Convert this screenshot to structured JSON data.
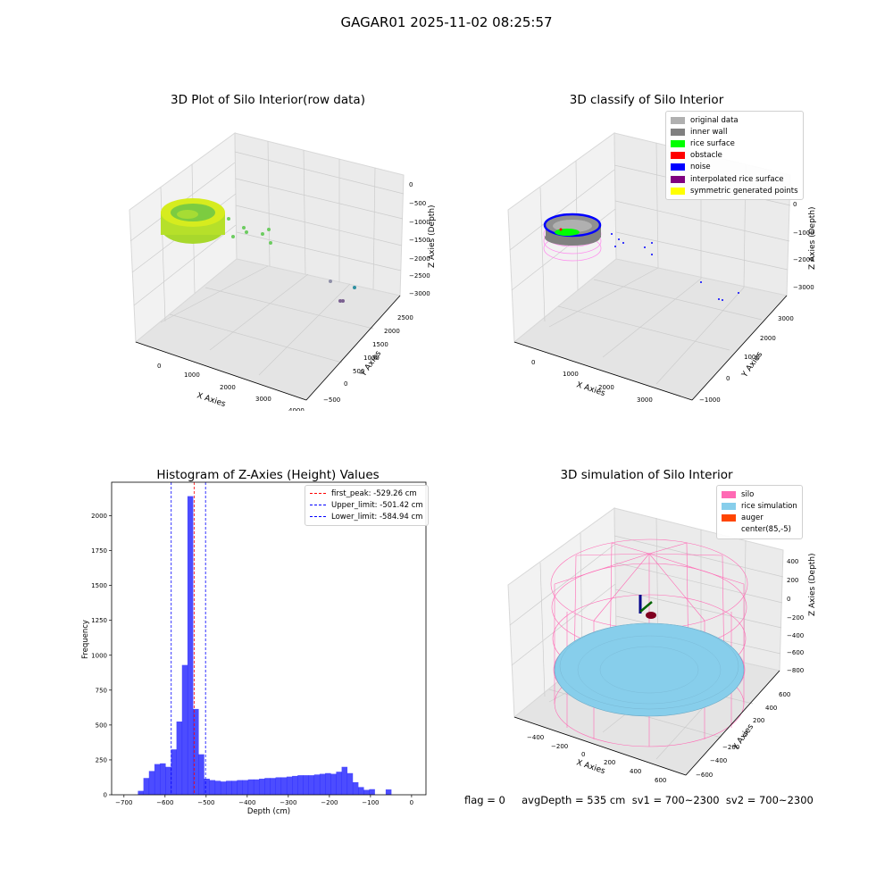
{
  "suptitle": "GAGAR01 2025-11-02 08:25:57",
  "footer": "flag = 0     avgDepth = 535 cm  sv1 = 700~2300  sv2 = 700~2300",
  "chart_data": [
    {
      "type": "scatter",
      "title": "3D Plot of Silo Interior(row data)",
      "xlabel": "X Axies",
      "ylabel": "Y Axies",
      "zlabel": "Z Axies (Depth)",
      "x_ticks": [
        "0",
        "1000",
        "2000",
        "3000",
        "4000"
      ],
      "y_ticks": [
        "−500",
        "0",
        "500",
        "1000",
        "1500",
        "2000",
        "2500"
      ],
      "z_ticks": [
        "0",
        "−500",
        "−1000",
        "−1500",
        "−2000",
        "−2500",
        "−3000"
      ]
    },
    {
      "type": "scatter",
      "title": "3D classify of Silo Interior",
      "xlabel": "X Axies",
      "ylabel": "Y Axies",
      "zlabel": "Z Axies (Depth)",
      "x_ticks": [
        "0",
        "1000",
        "2000",
        "3000"
      ],
      "y_ticks": [
        "−1000",
        "0",
        "1000",
        "2000",
        "3000"
      ],
      "z_ticks": [
        "0",
        "−1000",
        "−2000",
        "−3000"
      ],
      "legend": [
        {
          "label": "original data",
          "color": "#b0b0b0"
        },
        {
          "label": "inner wall",
          "color": "#808080"
        },
        {
          "label": "rice surface",
          "color": "#00ff00"
        },
        {
          "label": "obstacle",
          "color": "#ff0000"
        },
        {
          "label": "noise",
          "color": "#0000ff"
        },
        {
          "label": "interpolated rice surface",
          "color": "#800080"
        },
        {
          "label": "symmetric generated points",
          "color": "#ffff00"
        }
      ]
    },
    {
      "type": "bar",
      "title": "Histogram of Z-Axies (Height) Values",
      "xlabel": "Depth (cm)",
      "ylabel": "Frequency",
      "xlim": [
        -730,
        35
      ],
      "ylim": [
        0,
        2240
      ],
      "x_ticks": [
        -700,
        -600,
        -500,
        -400,
        -300,
        -200,
        -100,
        0
      ],
      "y_ticks": [
        0,
        250,
        500,
        750,
        1000,
        1250,
        1500,
        1750,
        2000
      ],
      "bin_width": 13.4,
      "bin_start": -666,
      "values": [
        28,
        120,
        170,
        220,
        225,
        200,
        325,
        525,
        930,
        2140,
        615,
        290,
        115,
        105,
        100,
        95,
        100,
        100,
        105,
        105,
        110,
        110,
        115,
        120,
        120,
        125,
        125,
        130,
        135,
        140,
        140,
        140,
        145,
        150,
        155,
        150,
        165,
        200,
        155,
        90,
        55,
        35,
        40,
        0,
        0,
        38
      ],
      "bar_color": "#0000ff",
      "lines": [
        {
          "label": "first_peak: -529.26 cm",
          "x": -529.26,
          "color": "#ff0000"
        },
        {
          "label": "Upper_limit: -501.42 cm",
          "x": -501.42,
          "color": "#0000ff"
        },
        {
          "label": "Lower_limit: -584.94 cm",
          "x": -584.94,
          "color": "#0000ff"
        }
      ]
    },
    {
      "type": "scatter",
      "title": "3D simulation of Silo Interior",
      "xlabel": "X Axies",
      "ylabel": "Y Axies",
      "zlabel": "Z Axies (Depth)",
      "x_ticks": [
        "−400",
        "−200",
        "0",
        "200",
        "400",
        "600"
      ],
      "y_ticks": [
        "−600",
        "−400",
        "−200",
        "0",
        "200",
        "400",
        "600"
      ],
      "z_ticks": [
        "400",
        "200",
        "0",
        "−200",
        "−400",
        "−600",
        "−800"
      ],
      "legend": [
        {
          "label": "silo",
          "color": "#ff69b4"
        },
        {
          "label": "rice simulation",
          "color": "#87ceeb"
        },
        {
          "label": "auger",
          "color": "#ff4500"
        },
        {
          "label": "center(85,-5)",
          "color": "#ffffff"
        }
      ]
    }
  ]
}
